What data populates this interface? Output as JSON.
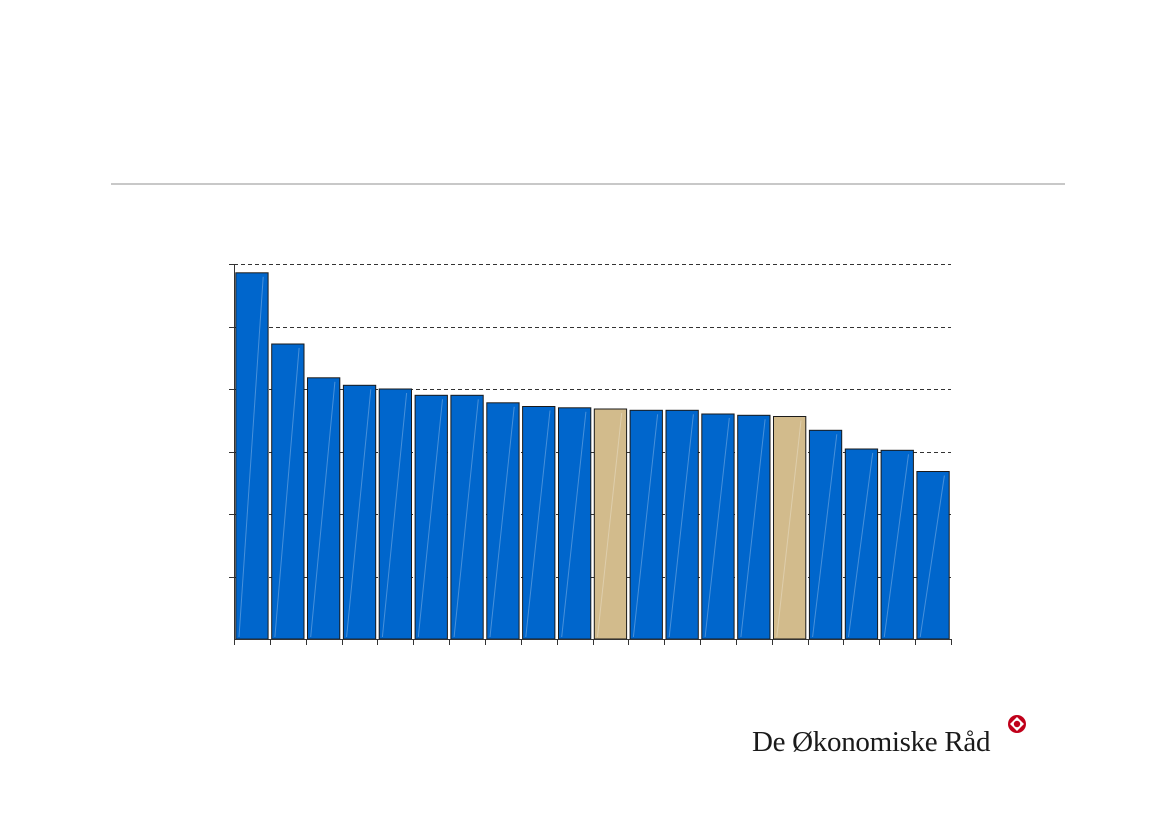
{
  "chart_data": {
    "type": "bar",
    "categories": [
      "",
      "",
      "",
      "",
      "",
      "",
      "",
      "",
      "",
      "",
      "",
      "",
      "",
      "",
      "",
      "",
      "",
      "",
      "",
      ""
    ],
    "values": [
      29.3,
      23.6,
      20.9,
      20.3,
      20.0,
      19.5,
      19.5,
      18.9,
      18.6,
      18.5,
      18.4,
      18.3,
      18.3,
      18.0,
      17.9,
      17.8,
      16.7,
      15.2,
      15.1,
      13.4
    ],
    "highlight": [
      false,
      false,
      false,
      false,
      false,
      false,
      false,
      false,
      false,
      false,
      true,
      false,
      false,
      false,
      false,
      true,
      false,
      false,
      false,
      false
    ],
    "ylim": [
      0,
      30
    ],
    "ytick_step": 5,
    "grid": true,
    "title": "",
    "xlabel": "",
    "ylabel": "",
    "colors": {
      "bar": "#0066cc",
      "highlight": "#d2bb8c",
      "bar_edge": "#1a1a1a",
      "grid": "#333333",
      "axis": "#333333"
    }
  },
  "logo": {
    "text": "De Økonomiske Råd",
    "icon": "council-emblem-icon",
    "color": "#c0001a"
  },
  "colors": {
    "rule": "#c8c8c8"
  }
}
